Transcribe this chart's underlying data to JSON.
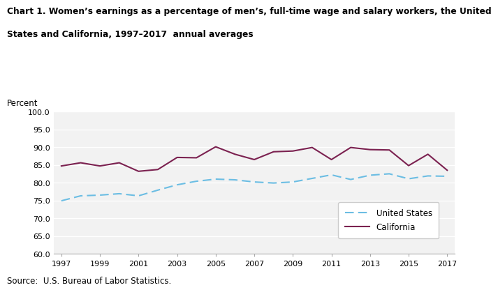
{
  "title_line1": "Chart 1. Women’s earnings as a percentage of men’s, full-time wage and salary workers, the United",
  "title_line2": "States and California, 1997–2017  annual averages",
  "ylabel_text": "Percent",
  "source": "Source:  U.S. Bureau of Labor Statistics.",
  "years": [
    1997,
    1998,
    1999,
    2000,
    2001,
    2002,
    2003,
    2004,
    2005,
    2006,
    2007,
    2008,
    2009,
    2010,
    2011,
    2012,
    2013,
    2014,
    2015,
    2016,
    2017
  ],
  "us_values": [
    74.9,
    76.3,
    76.5,
    76.9,
    76.3,
    77.9,
    79.4,
    80.4,
    81.0,
    80.8,
    80.2,
    79.9,
    80.2,
    81.2,
    82.2,
    80.9,
    82.1,
    82.5,
    81.1,
    81.9,
    81.8
  ],
  "ca_values": [
    84.7,
    85.6,
    84.7,
    85.6,
    83.2,
    83.7,
    87.1,
    87.0,
    90.1,
    88.0,
    86.5,
    88.7,
    88.9,
    89.9,
    86.5,
    89.9,
    89.3,
    89.2,
    84.8,
    88.0,
    83.5
  ],
  "us_color": "#6bbde3",
  "ca_color": "#7b2150",
  "ylim": [
    60.0,
    100.0
  ],
  "yticks": [
    60.0,
    65.0,
    70.0,
    75.0,
    80.0,
    85.0,
    90.0,
    95.0,
    100.0
  ],
  "xticks": [
    1997,
    1999,
    2001,
    2003,
    2005,
    2007,
    2009,
    2011,
    2013,
    2015,
    2017
  ],
  "legend_us": "United States",
  "legend_ca": "California",
  "background_color": "#ffffff",
  "plot_bg_color": "#f2f2f2"
}
